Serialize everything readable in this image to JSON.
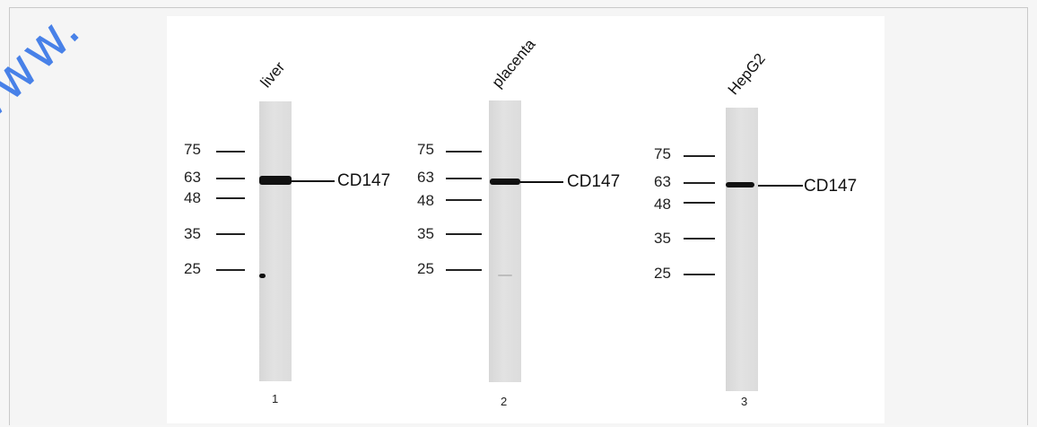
{
  "watermark": "www.",
  "lanes": [
    {
      "sample": "liver",
      "number": "1",
      "markers": [
        "75",
        "63",
        "48",
        "35",
        "25"
      ],
      "protein": "CD147"
    },
    {
      "sample": "placenta",
      "number": "2",
      "markers": [
        "75",
        "63",
        "48",
        "35",
        "25"
      ],
      "protein": "CD147"
    },
    {
      "sample": "HepG2",
      "number": "3",
      "markers": [
        "75",
        "63",
        "48",
        "35",
        "25"
      ],
      "protein": "CD147"
    }
  ]
}
